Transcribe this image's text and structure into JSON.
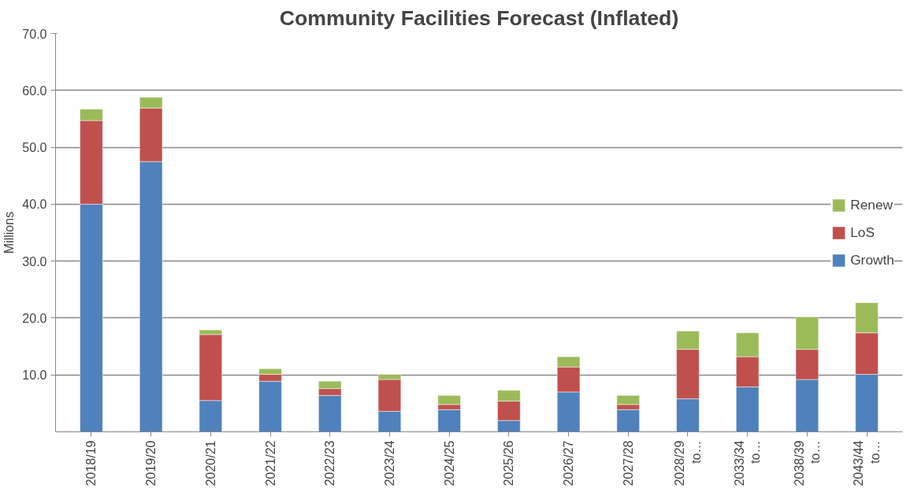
{
  "chart_data": {
    "type": "bar",
    "title": "Community Facilities Forecast (Inflated)",
    "ylabel": "Millions",
    "categories": [
      "2018/19",
      "2019/20",
      "2020/21",
      "2021/22",
      "2022/23",
      "2023/24",
      "2024/25",
      "2025/26",
      "2026/27",
      "2027/28",
      "2028/29 to…",
      "2033/34 to…",
      "2038/39 to…",
      "2043/44 to…"
    ],
    "stacked": true,
    "series": [
      {
        "name": "Growth",
        "color": "#4f81bd",
        "values": [
          40.0,
          47.5,
          5.5,
          8.9,
          6.4,
          3.6,
          3.9,
          2.0,
          7.0,
          3.9,
          5.8,
          7.9,
          9.2,
          10.1
        ]
      },
      {
        "name": "LoS",
        "color": "#c0504d",
        "values": [
          14.7,
          9.4,
          11.6,
          1.2,
          1.2,
          5.6,
          0.9,
          3.4,
          4.4,
          0.9,
          8.7,
          5.3,
          5.3,
          7.3
        ]
      },
      {
        "name": "Renew",
        "color": "#9bbb59",
        "values": [
          2.0,
          1.9,
          0.8,
          1.0,
          1.3,
          0.9,
          1.6,
          1.9,
          1.8,
          1.6,
          3.2,
          4.2,
          5.7,
          5.3
        ]
      }
    ],
    "ylim": [
      0,
      70
    ],
    "yticks": [
      {
        "value": 10,
        "label": "10.0"
      },
      {
        "value": 20,
        "label": "20.0"
      },
      {
        "value": 30,
        "label": "30.0"
      },
      {
        "value": 40,
        "label": "40.0"
      },
      {
        "value": 50,
        "label": "50.0"
      },
      {
        "value": 60,
        "label": "60.0"
      },
      {
        "value": 70,
        "label": "70.0"
      }
    ],
    "grid": "y",
    "legend": "right"
  }
}
